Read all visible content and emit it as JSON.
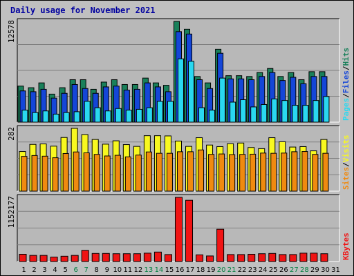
{
  "title": "Daily usage for November 2021",
  "colors": {
    "hits": "#19805a",
    "files": "#1446d8",
    "pages": "#2ad8f0",
    "visits": "#f8f820",
    "sites": "#f08a10",
    "kbytes": "#f01414",
    "weekend_label": "#008040",
    "background": "#c0c0c0",
    "panel": "#b8b8b8"
  },
  "chart_data": {
    "type": "bar",
    "categories": [
      "1",
      "2",
      "3",
      "4",
      "5",
      "6",
      "7",
      "8",
      "9",
      "10",
      "11",
      "12",
      "13",
      "14",
      "15",
      "16",
      "17",
      "18",
      "19",
      "20",
      "21",
      "22",
      "23",
      "24",
      "25",
      "26",
      "27",
      "28",
      "29",
      "30",
      "31"
    ],
    "weekend_days": [
      "6",
      "7",
      "13",
      "14",
      "20",
      "21",
      "27",
      "28"
    ],
    "panels": [
      {
        "name": "hits-files-pages",
        "ymax_label": "12578",
        "ylim": [
          0,
          12578
        ],
        "legend": [
          "Pages",
          "/",
          "Files",
          "/",
          "Hits"
        ],
        "series": [
          {
            "name": "Hits",
            "values": [
              4500,
              4300,
              4900,
              3500,
              4300,
              5300,
              5300,
              4100,
              5000,
              5300,
              4700,
              4700,
              5500,
              4900,
              4600,
              12578,
              11600,
              5700,
              4900,
              9100,
              5800,
              5800,
              5700,
              6200,
              6700,
              5700,
              6200,
              5300,
              6300,
              6300,
              0
            ]
          },
          {
            "name": "Files",
            "values": [
              3900,
              3800,
              4100,
              3000,
              3600,
              4700,
              4200,
              3600,
              4400,
              4500,
              4000,
              4100,
              4900,
              4400,
              3800,
              11300,
              11000,
              5300,
              4200,
              8600,
              5400,
              5400,
              5300,
              5700,
              6200,
              5200,
              5600,
              4800,
              5700,
              5700,
              0
            ]
          },
          {
            "name": "Pages",
            "values": [
              1500,
              1200,
              1400,
              1000,
              1200,
              1300,
              2600,
              1800,
              1400,
              1700,
              1500,
              1600,
              1800,
              2600,
              2600,
              7900,
              7600,
              1800,
              1500,
              5500,
              2500,
              2800,
              1900,
              2200,
              2900,
              2700,
              2100,
              2100,
              2700,
              3200,
              0
            ]
          }
        ]
      },
      {
        "name": "visits-sites",
        "ymax_label": "282",
        "ylim": [
          0,
          282
        ],
        "legend": [
          "Sites",
          "/",
          "Visits"
        ],
        "series": [
          {
            "name": "Visits",
            "values": [
              178,
              210,
              212,
              202,
              241,
              282,
              254,
              232,
              211,
              226,
              209,
              201,
              249,
              249,
              248,
              225,
              201,
              240,
              207,
              200,
              213,
              216,
              196,
              191,
              240,
              222,
              198,
              200,
              181,
              232,
              0
            ]
          },
          {
            "name": "Sites",
            "values": [
              156,
              160,
              157,
              150,
              169,
              176,
              172,
              165,
              158,
              161,
              154,
              162,
              176,
              170,
              170,
              177,
              177,
              185,
              165,
              167,
              164,
              165,
              166,
              171,
              170,
              171,
              177,
              178,
              165,
              170,
              0
            ]
          }
        ]
      },
      {
        "name": "kbytes",
        "ymax_label": "1152177",
        "ylim": [
          0,
          1152177
        ],
        "legend": [
          "KBytes"
        ],
        "series": [
          {
            "name": "KBytes",
            "values": [
              130000,
              110000,
              110000,
              80000,
              95000,
              110000,
              200000,
              145000,
              145000,
              140000,
              140000,
              140000,
              150000,
              170000,
              125000,
              1152177,
              1100000,
              120000,
              100000,
              580000,
              125000,
              125000,
              130000,
              140000,
              145000,
              125000,
              125000,
              150000,
              150000,
              140000,
              0
            ]
          }
        ]
      }
    ]
  }
}
